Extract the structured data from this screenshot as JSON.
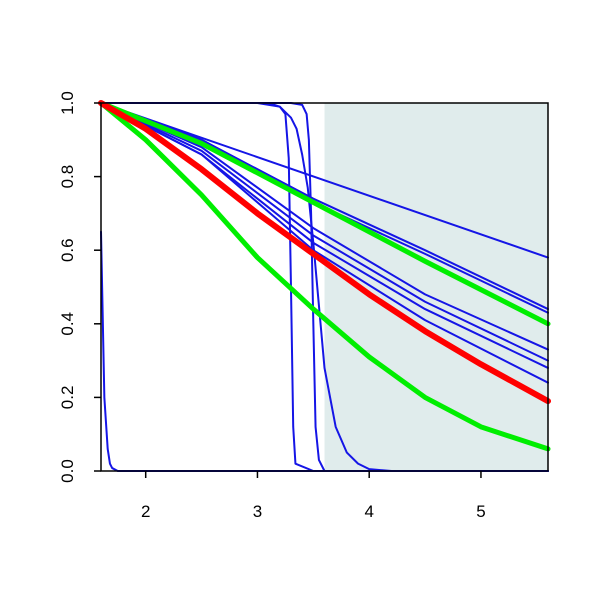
{
  "chart_data": {
    "type": "line",
    "title": "",
    "xlabel": "",
    "ylabel": "",
    "xlim": [
      1.6,
      5.6
    ],
    "ylim": [
      0.0,
      1.0
    ],
    "x_ticks": [
      2,
      3,
      4,
      5
    ],
    "x_tick_labels": [
      "2",
      "3",
      "4",
      "5"
    ],
    "y_ticks": [
      0.0,
      0.2,
      0.4,
      0.6,
      0.8,
      1.0
    ],
    "y_tick_labels": [
      "0.0",
      "0.2",
      "0.4",
      "0.6",
      "0.8",
      "1.0"
    ],
    "grid": false,
    "shaded_region": {
      "x_from": 3.6,
      "x_to": 5.6,
      "color": "#e0ecec"
    },
    "colors": {
      "blue": "#1515e6",
      "red": "#ff0000",
      "green": "#00ee00",
      "axis": "#000000"
    },
    "series": [
      {
        "color": "blue",
        "x": [
          1.6,
          5.6
        ],
        "y": [
          1.0,
          0.58
        ]
      },
      {
        "color": "blue",
        "x": [
          1.6,
          2.5,
          3.5,
          4.5,
          5.6
        ],
        "y": [
          1.0,
          0.9,
          0.74,
          0.6,
          0.44
        ]
      },
      {
        "color": "blue",
        "x": [
          1.6,
          2.5,
          3.5,
          4.5,
          5.6
        ],
        "y": [
          1.0,
          0.9,
          0.73,
          0.59,
          0.43
        ]
      },
      {
        "color": "blue",
        "x": [
          1.6,
          2.5,
          3.5,
          4.5,
          5.6
        ],
        "y": [
          1.0,
          0.88,
          0.66,
          0.48,
          0.33
        ]
      },
      {
        "color": "blue",
        "x": [
          1.6,
          2.5,
          3.5,
          4.5,
          5.6
        ],
        "y": [
          1.0,
          0.87,
          0.64,
          0.46,
          0.3
        ]
      },
      {
        "color": "blue",
        "x": [
          1.6,
          2.5,
          3.5,
          4.5,
          5.6
        ],
        "y": [
          1.0,
          0.86,
          0.62,
          0.44,
          0.28
        ]
      },
      {
        "color": "blue",
        "x": [
          1.6,
          2.5,
          3.5,
          4.5,
          5.6
        ],
        "y": [
          1.0,
          0.86,
          0.6,
          0.41,
          0.24
        ]
      },
      {
        "color": "blue",
        "x": [
          1.6,
          1.63,
          1.66,
          1.68,
          1.7,
          1.75,
          5.6
        ],
        "y": [
          0.65,
          0.2,
          0.06,
          0.02,
          0.008,
          0.0,
          0.0
        ]
      },
      {
        "color": "blue",
        "x": [
          1.6,
          2.5,
          3.1,
          3.2,
          3.25,
          3.28,
          3.3,
          3.32,
          3.34,
          3.5,
          5.6
        ],
        "y": [
          1.0,
          1.0,
          1.0,
          0.99,
          0.97,
          0.85,
          0.5,
          0.12,
          0.02,
          0.0,
          0.0
        ]
      },
      {
        "color": "blue",
        "x": [
          1.6,
          3.0,
          3.2,
          3.3,
          3.35,
          3.4,
          3.45,
          3.5,
          3.55,
          3.6,
          3.7,
          3.8,
          3.9,
          4.0,
          4.2,
          5.6
        ],
        "y": [
          1.0,
          1.0,
          0.99,
          0.96,
          0.93,
          0.86,
          0.77,
          0.62,
          0.45,
          0.28,
          0.12,
          0.05,
          0.02,
          0.005,
          0.0,
          0.0
        ]
      },
      {
        "color": "blue",
        "x": [
          1.6,
          3.3,
          3.4,
          3.44,
          3.46,
          3.48,
          3.5,
          3.52,
          3.55,
          3.6,
          5.6
        ],
        "y": [
          1.0,
          1.0,
          0.995,
          0.97,
          0.9,
          0.7,
          0.4,
          0.12,
          0.03,
          0.0,
          0.0
        ]
      },
      {
        "color": "green",
        "x": [
          1.6,
          2.5,
          3.5,
          4.5,
          5.6
        ],
        "y": [
          1.0,
          0.89,
          0.73,
          0.57,
          0.4
        ]
      },
      {
        "color": "green",
        "x": [
          1.6,
          2.0,
          2.5,
          3.0,
          3.5,
          4.0,
          4.5,
          5.0,
          5.6
        ],
        "y": [
          1.0,
          0.9,
          0.75,
          0.58,
          0.44,
          0.31,
          0.2,
          0.12,
          0.06
        ]
      },
      {
        "color": "red",
        "x": [
          1.6,
          2.0,
          2.5,
          3.0,
          3.5,
          4.0,
          4.5,
          5.0,
          5.6
        ],
        "y": [
          1.0,
          0.93,
          0.82,
          0.7,
          0.59,
          0.48,
          0.38,
          0.29,
          0.19
        ]
      }
    ]
  }
}
